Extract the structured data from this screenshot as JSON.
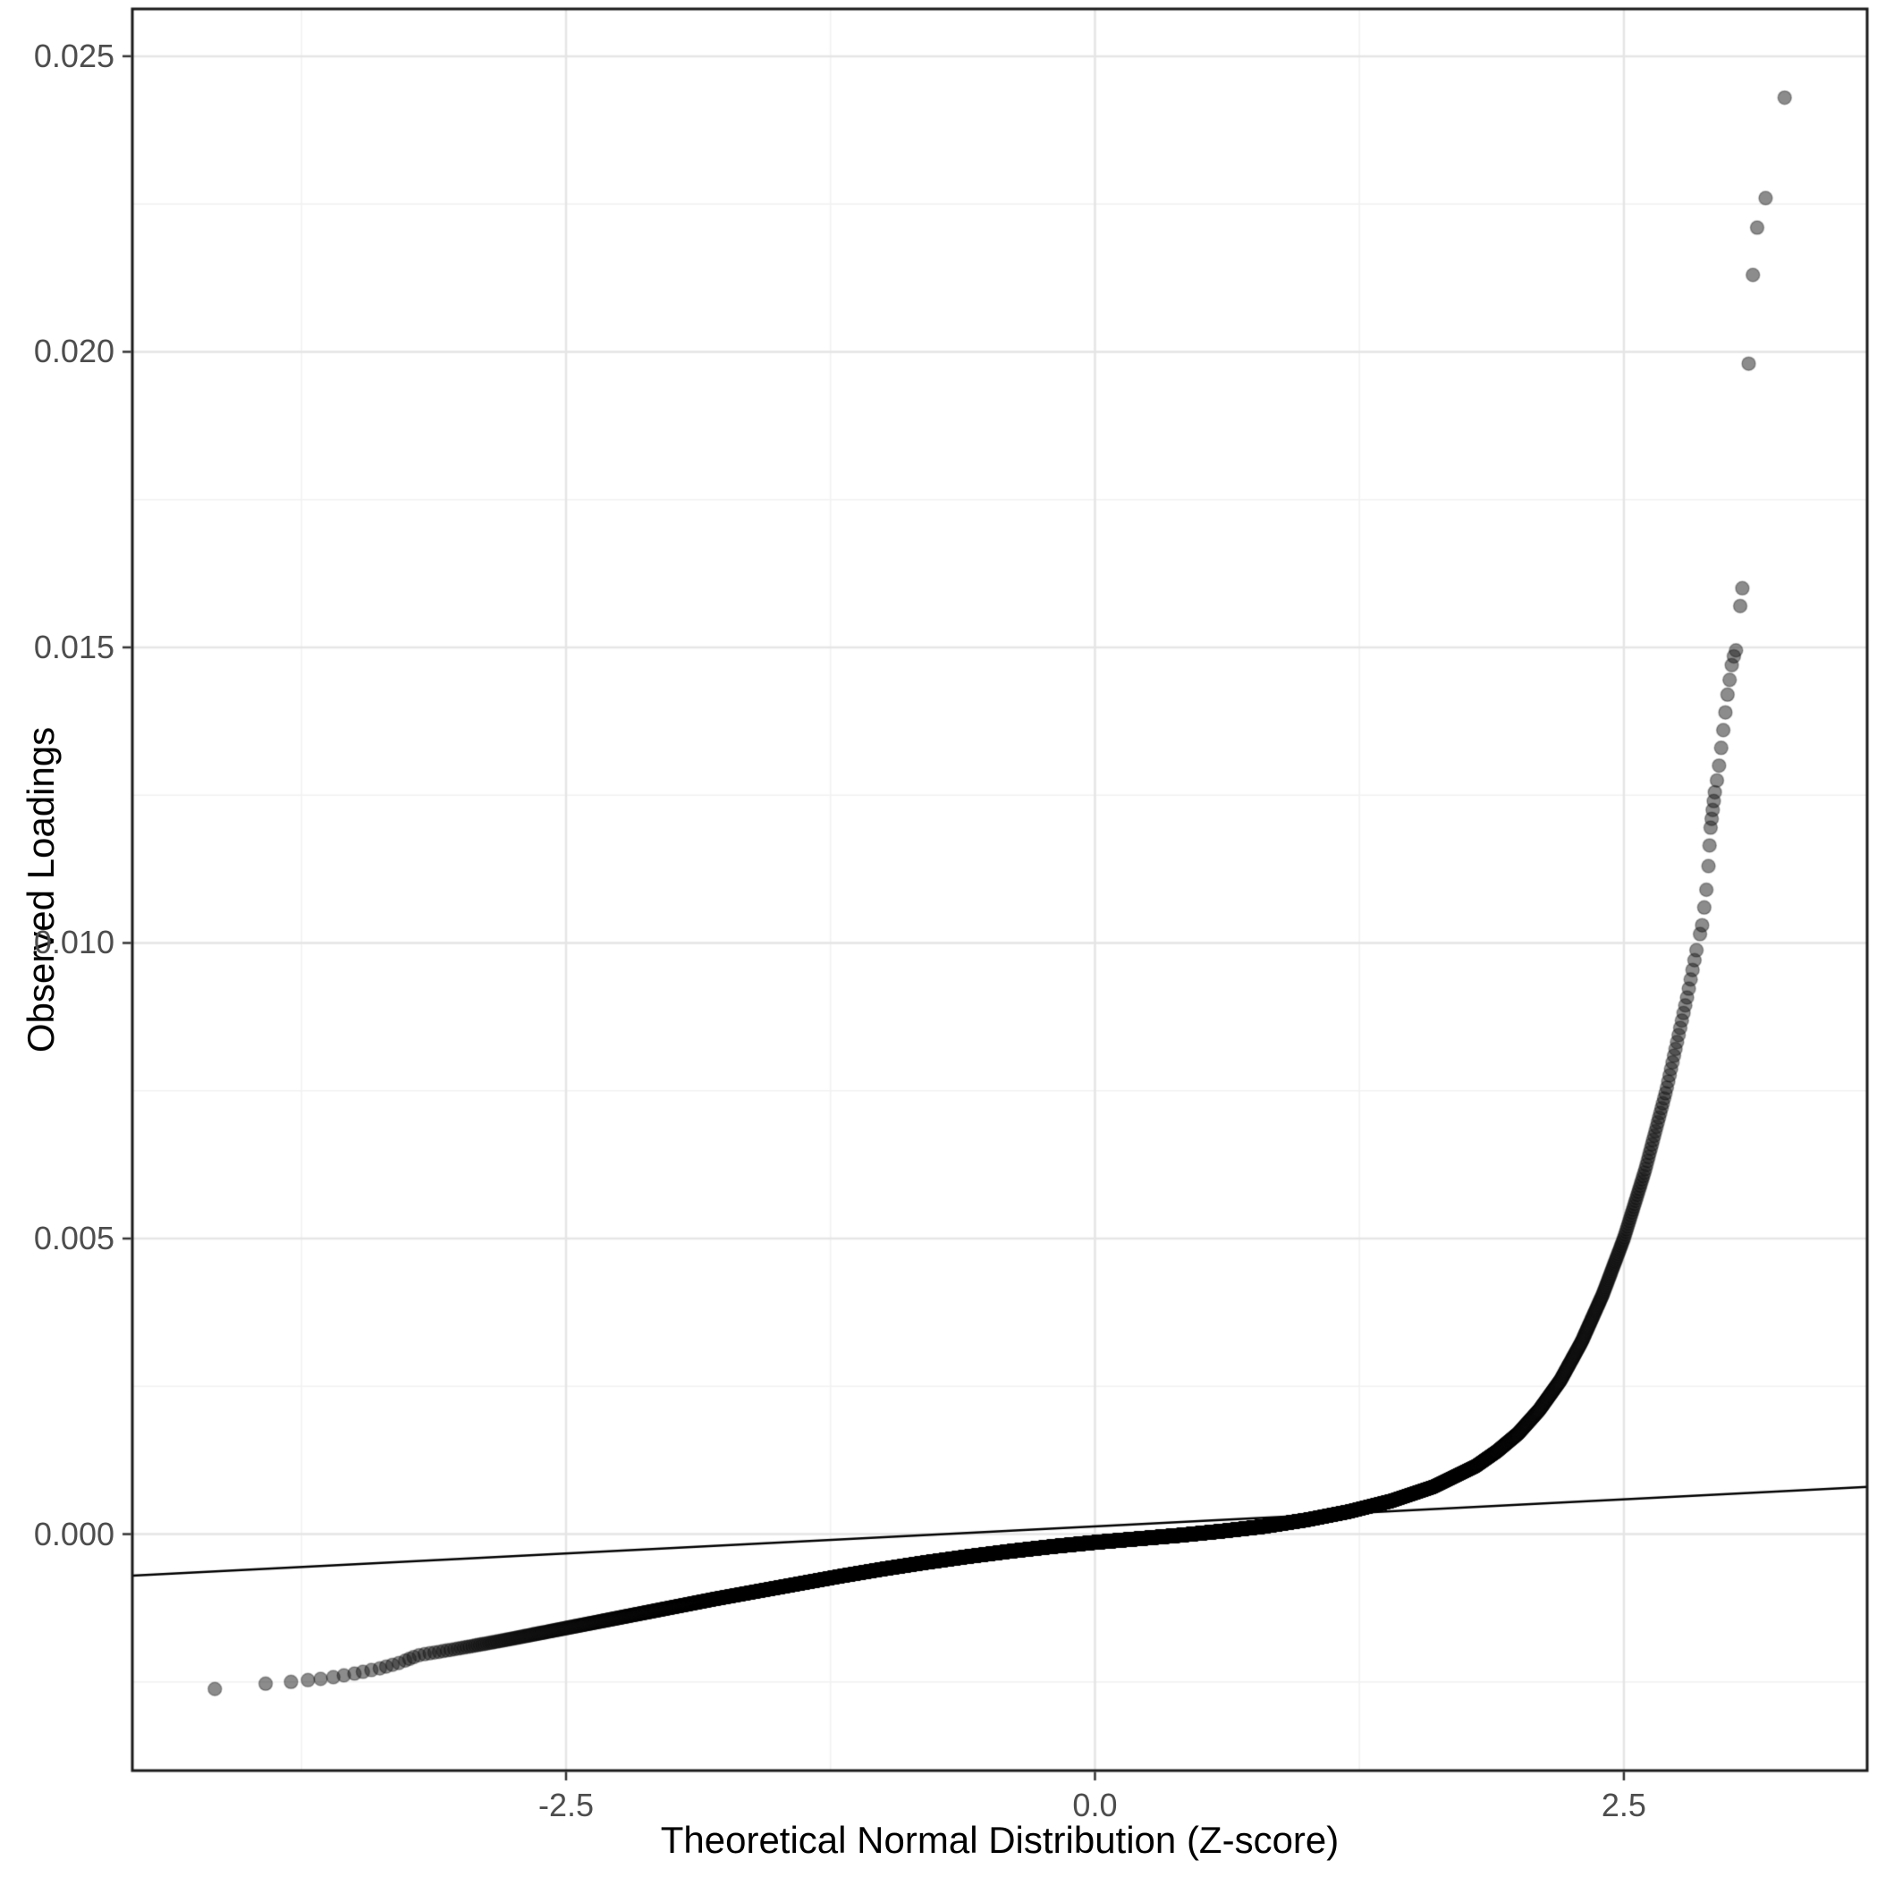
{
  "chart_data": {
    "type": "scatter",
    "variant": "qq_plot",
    "title": "",
    "xlabel": "Theoretical Normal Distribution (Z-score)",
    "ylabel": "Observed Loadings",
    "xlim": [
      -4.55,
      3.65
    ],
    "ylim": [
      -0.004,
      0.0258
    ],
    "x_ticks": {
      "values": [
        -2.5,
        0,
        2.5
      ],
      "labels": [
        "-2.5",
        "0.0",
        "2.5"
      ]
    },
    "x_minor": [
      -3.75,
      -1.25,
      1.25
    ],
    "y_ticks": {
      "values": [
        0,
        0.005,
        0.01,
        0.015,
        0.02,
        0.025
      ],
      "labels": [
        "0.000",
        "0.005",
        "0.010",
        "0.015",
        "0.020",
        "0.025"
      ]
    },
    "y_minor": [
      -0.0025,
      0.0025,
      0.0075,
      0.0125,
      0.0175,
      0.0225
    ],
    "grid": true,
    "legend": false,
    "reference_line": {
      "slope": 0.000183,
      "intercept": 0.00013
    },
    "points": {
      "style": {
        "color": "#1A1A1A",
        "alpha": 0.5,
        "radius": 7.5
      },
      "band": {
        "point_count": 15000,
        "z_range": [
          -3.2,
          2.85
        ],
        "knots": [
          [
            -3.2,
            -0.00205
          ],
          [
            -3.0,
            -0.00193
          ],
          [
            -2.8,
            -0.0018
          ],
          [
            -2.6,
            -0.00166
          ],
          [
            -2.4,
            -0.00152
          ],
          [
            -2.2,
            -0.00138
          ],
          [
            -2.0,
            -0.00124
          ],
          [
            -1.8,
            -0.0011
          ],
          [
            -1.6,
            -0.00097
          ],
          [
            -1.4,
            -0.00084
          ],
          [
            -1.2,
            -0.00071
          ],
          [
            -1.0,
            -0.00059
          ],
          [
            -0.8,
            -0.00048
          ],
          [
            -0.6,
            -0.00038
          ],
          [
            -0.4,
            -0.00029
          ],
          [
            -0.2,
            -0.00021
          ],
          [
            0.0,
            -0.00014
          ],
          [
            0.2,
            -8e-05
          ],
          [
            0.4,
            -2e-05
          ],
          [
            0.6,
            5e-05
          ],
          [
            0.8,
            0.00013
          ],
          [
            1.0,
            0.00024
          ],
          [
            1.2,
            0.00038
          ],
          [
            1.4,
            0.00056
          ],
          [
            1.6,
            0.0008
          ],
          [
            1.8,
            0.00115
          ],
          [
            1.9,
            0.0014
          ],
          [
            2.0,
            0.0017
          ],
          [
            2.1,
            0.0021
          ],
          [
            2.2,
            0.0026
          ],
          [
            2.3,
            0.00325
          ],
          [
            2.4,
            0.00405
          ],
          [
            2.5,
            0.005
          ],
          [
            2.6,
            0.00615
          ],
          [
            2.7,
            0.0075
          ],
          [
            2.8,
            0.0091
          ],
          [
            2.85,
            0.01
          ]
        ]
      },
      "lower_tail": [
        [
          -4.16,
          -0.00262
        ],
        [
          -3.92,
          -0.00253
        ],
        [
          -3.8,
          -0.0025
        ],
        [
          -3.72,
          -0.00247
        ],
        [
          -3.66,
          -0.00245
        ],
        [
          -3.6,
          -0.00242
        ],
        [
          -3.55,
          -0.00239
        ],
        [
          -3.5,
          -0.00236
        ],
        [
          -3.46,
          -0.00233
        ],
        [
          -3.42,
          -0.0023
        ],
        [
          -3.38,
          -0.00227
        ],
        [
          -3.35,
          -0.00224
        ],
        [
          -3.32,
          -0.00221
        ],
        [
          -3.29,
          -0.00218
        ],
        [
          -3.26,
          -0.00214
        ],
        [
          -3.24,
          -0.00211
        ],
        [
          -3.22,
          -0.00208
        ]
      ],
      "upper_tail": [
        [
          2.86,
          0.01015
        ],
        [
          2.87,
          0.0103
        ],
        [
          2.88,
          0.0106
        ],
        [
          2.89,
          0.0109
        ],
        [
          2.9,
          0.0113
        ],
        [
          2.905,
          0.01165
        ],
        [
          2.91,
          0.01195
        ],
        [
          2.915,
          0.0121
        ],
        [
          2.92,
          0.01225
        ],
        [
          2.925,
          0.0124
        ],
        [
          2.93,
          0.01255
        ],
        [
          2.94,
          0.01275
        ],
        [
          2.95,
          0.013
        ],
        [
          2.96,
          0.0133
        ],
        [
          2.97,
          0.0136
        ],
        [
          2.98,
          0.0139
        ],
        [
          2.99,
          0.0142
        ],
        [
          3.0,
          0.01445
        ],
        [
          3.01,
          0.0147
        ],
        [
          3.02,
          0.01485
        ],
        [
          3.03,
          0.01495
        ],
        [
          3.05,
          0.0157
        ],
        [
          3.06,
          0.016
        ],
        [
          3.09,
          0.0198
        ],
        [
          3.11,
          0.0213
        ],
        [
          3.13,
          0.0221
        ],
        [
          3.17,
          0.0226
        ],
        [
          3.26,
          0.0243
        ]
      ]
    }
  },
  "style": {
    "background": "#FFFFFF",
    "panel_background": "#FFFFFF",
    "panel_border": "#1A1A1A",
    "grid_major": "#E5E5E5",
    "grid_minor": "#F2F2F2",
    "tick_color": "#333333",
    "tick_label_color": "#4D4D4D",
    "axis_title_color": "#000000",
    "ref_line_color": "#000000"
  }
}
